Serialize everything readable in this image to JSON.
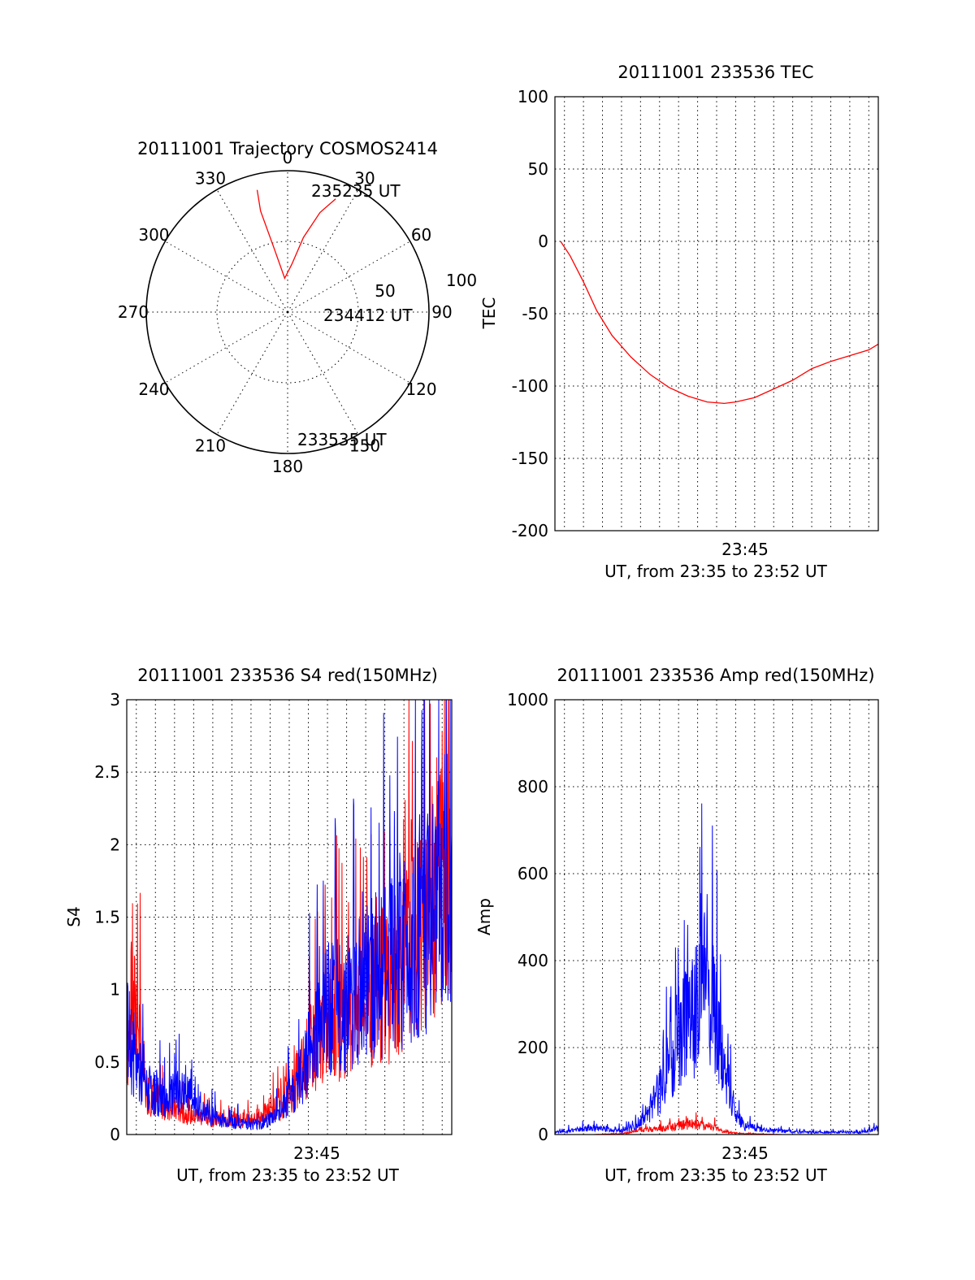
{
  "chart_data": [
    {
      "type": "polar",
      "title": "20111001 Trajectory COSMOS2414",
      "angle_labels": [
        "0",
        "30",
        "60",
        "90",
        "120",
        "150",
        "180",
        "210",
        "240",
        "270",
        "300",
        "330"
      ],
      "radius_labels": [
        "50",
        "100"
      ],
      "rlim": [
        0,
        100
      ],
      "grid": true,
      "series": [
        {
          "color": "#ff0000",
          "azimuth_deg": [
            23,
            18,
            12,
            5,
            -5,
            -12,
            -15,
            -14
          ],
          "radius": [
            87,
            74,
            54,
            34,
            24,
            46,
            74,
            89
          ]
        }
      ],
      "annotations": [
        "235235 UT",
        "234412 UT",
        "233535 UT"
      ]
    },
    {
      "type": "line",
      "title": "20111001 233536 TEC",
      "xlabel": "UT, from 23:35 to 23:52 UT",
      "ylabel": "TEC",
      "xlim": [
        0,
        17
      ],
      "ylim": [
        -200,
        100
      ],
      "yticks": [
        "100",
        "50",
        "0",
        "-50",
        "-100",
        "-150",
        "-200"
      ],
      "xtick_label": "23:45",
      "grid": true,
      "series": [
        {
          "color": "#ff0000",
          "x": [
            0.3,
            0.8,
            1.5,
            2.2,
            3.0,
            4.0,
            5.0,
            6.0,
            7.0,
            8.0,
            8.9,
            9.5,
            10.5,
            11.5,
            12.5,
            13.5,
            14.5,
            15.5,
            16.5,
            17.0
          ],
          "y": [
            0,
            -10,
            -28,
            -48,
            -65,
            -80,
            -92,
            -101,
            -107,
            -111,
            -112,
            -111,
            -108,
            -102,
            -96,
            -88,
            -83,
            -79,
            -75,
            -71
          ]
        }
      ]
    },
    {
      "type": "line",
      "title": "20111001 233536 S4 red(150MHz)",
      "xlabel": "UT, from 23:35 to 23:52 UT",
      "ylabel": "S4",
      "xlim": [
        0,
        17
      ],
      "ylim": [
        0,
        3
      ],
      "yticks": [
        "3",
        "2.5",
        "2",
        "1.5",
        "1",
        "0.5",
        "0"
      ],
      "xtick_label": "23:45",
      "grid": true,
      "series": [
        {
          "color": "#ff0000",
          "x": [
            0,
            0.5,
            1,
            2,
            3,
            4,
            5,
            6,
            7,
            8,
            9,
            10,
            11,
            12,
            13,
            14,
            15,
            16,
            17
          ],
          "y": [
            0.6,
            0.9,
            0.3,
            0.2,
            0.15,
            0.12,
            0.1,
            0.1,
            0.12,
            0.2,
            0.4,
            0.7,
            0.8,
            0.85,
            1.0,
            1.1,
            1.3,
            1.6,
            2.2
          ]
        },
        {
          "color": "#0000ff",
          "x": [
            0,
            0.5,
            1,
            2,
            3,
            4,
            5,
            6,
            7,
            8,
            9,
            10,
            11,
            12,
            13,
            14,
            15,
            16,
            17
          ],
          "y": [
            0.7,
            0.5,
            0.3,
            0.25,
            0.3,
            0.15,
            0.1,
            0.08,
            0.07,
            0.15,
            0.35,
            0.8,
            0.9,
            0.95,
            1.1,
            1.2,
            1.4,
            1.5,
            1.4
          ]
        }
      ]
    },
    {
      "type": "line",
      "title": "20111001 233536 Amp red(150MHz)",
      "xlabel": "UT, from 23:35 to 23:52 UT",
      "ylabel": "Amp",
      "xlim": [
        0,
        17
      ],
      "ylim": [
        0,
        1000
      ],
      "yticks": [
        "1000",
        "800",
        "600",
        "400",
        "200",
        "0"
      ],
      "xtick_label": "23:45",
      "grid": true,
      "series": [
        {
          "color": "#ff0000",
          "x": [
            0,
            2,
            3.5,
            4,
            5,
            6,
            6.5,
            7,
            7.5,
            8,
            8.5,
            9,
            10,
            12,
            17
          ],
          "y": [
            0,
            0,
            2,
            5,
            12,
            15,
            20,
            25,
            22,
            20,
            15,
            5,
            2,
            0,
            0
          ]
        },
        {
          "color": "#0000ff",
          "x": [
            0,
            1,
            2,
            3,
            3.5,
            4,
            4.5,
            5,
            5.5,
            6,
            6.5,
            7,
            7.5,
            8,
            8.5,
            9,
            9.5,
            10,
            11,
            12,
            13,
            14,
            15,
            16,
            16.5,
            17
          ],
          "y": [
            5,
            10,
            15,
            10,
            10,
            15,
            30,
            60,
            100,
            160,
            220,
            260,
            300,
            360,
            240,
            120,
            40,
            20,
            10,
            8,
            6,
            5,
            5,
            5,
            8,
            15
          ]
        }
      ]
    }
  ]
}
